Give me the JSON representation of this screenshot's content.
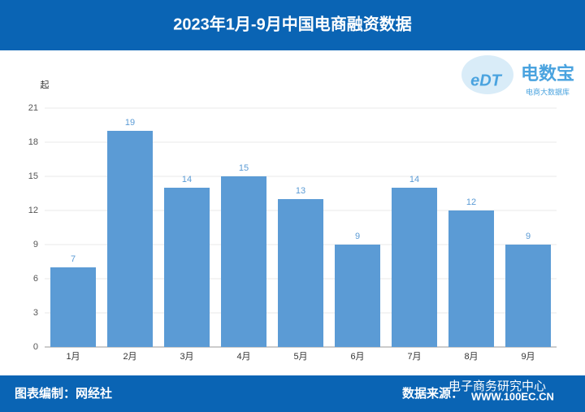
{
  "chart_data": {
    "type": "bar",
    "title": "2023年1月-9月中国电商融资数据",
    "y_label": "起",
    "categories": [
      "1月",
      "2月",
      "3月",
      "4月",
      "5月",
      "6月",
      "7月",
      "8月",
      "9月"
    ],
    "values": [
      7,
      19,
      14,
      15,
      13,
      9,
      14,
      12,
      9
    ],
    "color": "#5b9bd5",
    "ylim": [
      0,
      21
    ],
    "yticks": [
      0,
      3,
      6,
      9,
      12,
      15,
      18,
      21
    ],
    "grid": true
  },
  "logo": {
    "mark": "eDT",
    "name": "电数宝",
    "tagline": "电商大数据库"
  },
  "footer": {
    "left": "图表编制：网经社",
    "right": "数据来源：",
    "watermark": "电子商务研究中心",
    "watermark_url": "WWW.100EC.CN"
  }
}
